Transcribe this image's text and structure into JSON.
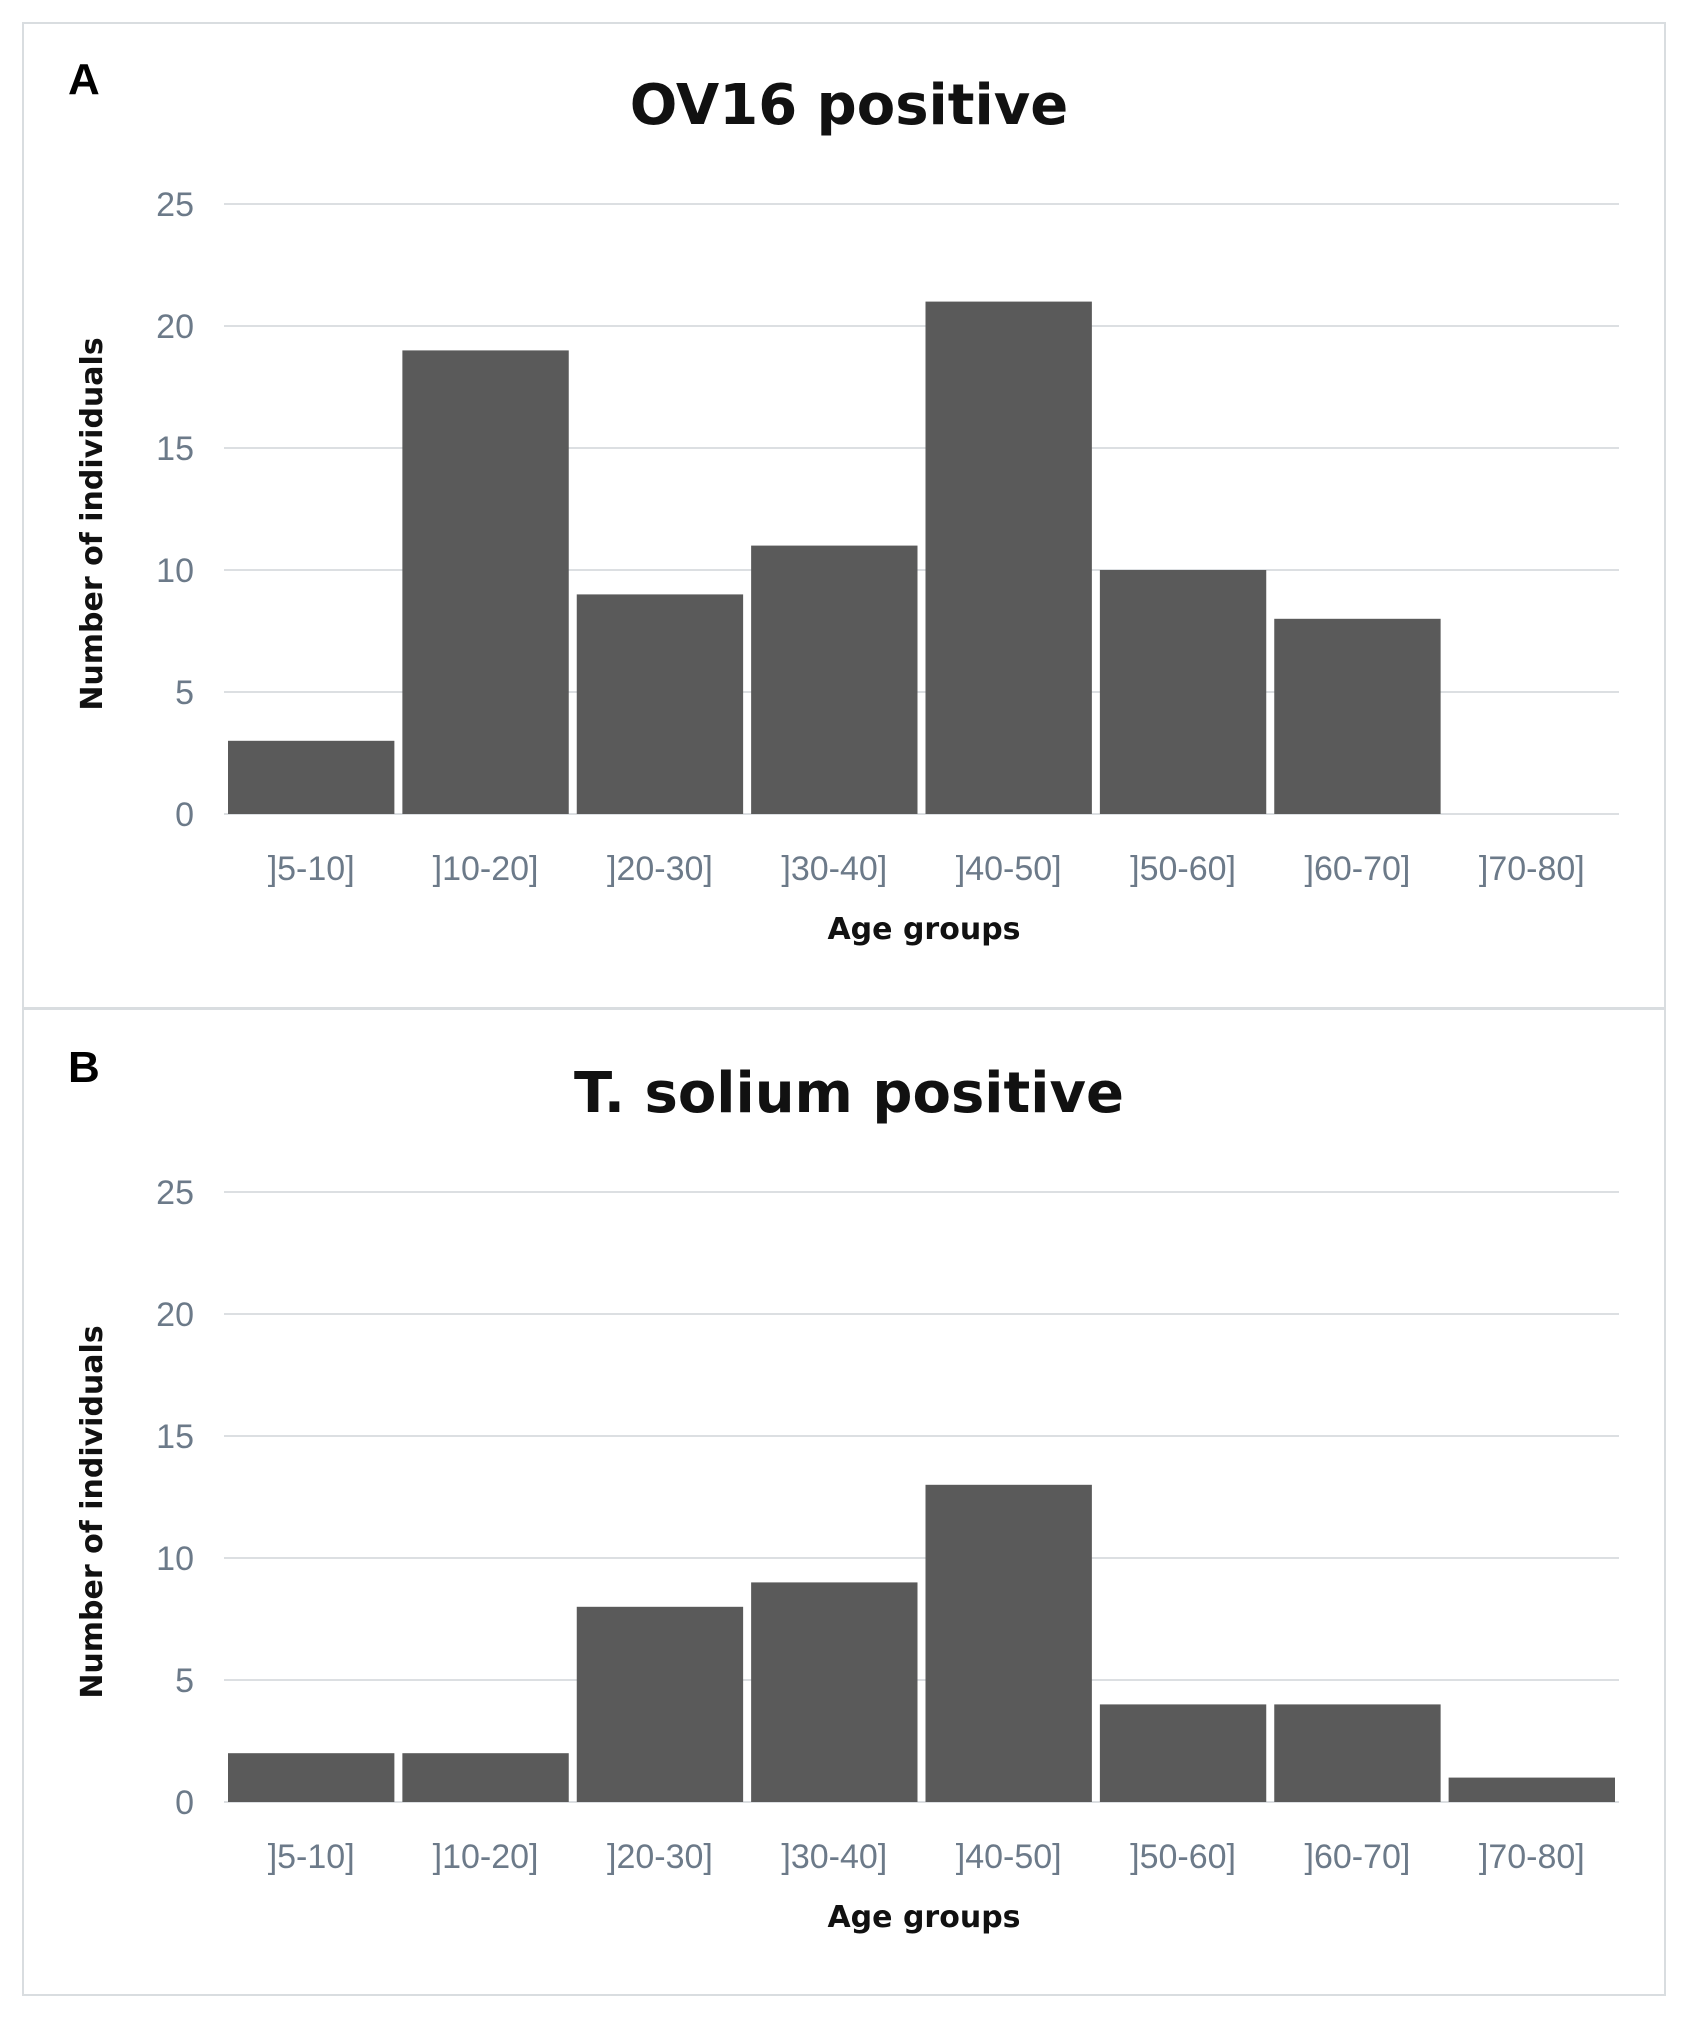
{
  "panels": [
    {
      "letter": "A",
      "chart_data": {
        "type": "bar",
        "title": "OV16 positive",
        "xlabel": "Age groups",
        "ylabel": "Number of individuals",
        "categories": [
          "]5-10]",
          "]10-20]",
          "]20-30]",
          "]30-40]",
          "]40-50]",
          "]50-60]",
          "]60-70]",
          "]70-80]"
        ],
        "values": [
          3,
          19,
          9,
          11,
          21,
          10,
          8,
          0
        ],
        "ylim": [
          0,
          25
        ],
        "yticks": [
          0,
          5,
          10,
          15,
          20,
          25
        ],
        "grid": true,
        "bar_color": "#5a5a5a"
      }
    },
    {
      "letter": "B",
      "chart_data": {
        "type": "bar",
        "title": "T. solium positive",
        "xlabel": "Age groups",
        "ylabel": "Number of individuals",
        "categories": [
          "]5-10]",
          "]10-20]",
          "]20-30]",
          "]30-40]",
          "]40-50]",
          "]50-60]",
          "]60-70]",
          "]70-80]"
        ],
        "values": [
          2,
          2,
          8,
          9,
          13,
          4,
          4,
          1
        ],
        "ylim": [
          0,
          25
        ],
        "yticks": [
          0,
          5,
          10,
          15,
          20,
          25
        ],
        "grid": true,
        "bar_color": "#5a5a5a"
      }
    }
  ]
}
